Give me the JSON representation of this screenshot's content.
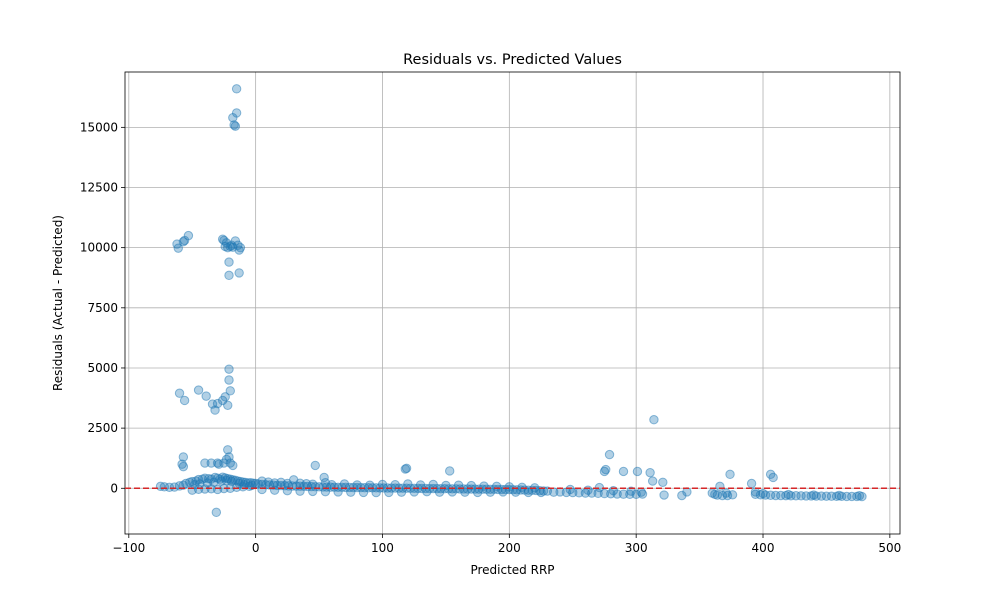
{
  "chart_data": {
    "type": "scatter",
    "title": "Residuals vs. Predicted Values",
    "xlabel": "Predicted RRP",
    "ylabel": "Residuals (Actual - Predicted)",
    "xlim": [
      -103,
      508
    ],
    "ylim": [
      -1900,
      17300
    ],
    "xticks": [
      -100,
      0,
      100,
      200,
      300,
      400,
      500
    ],
    "xtick_labels": [
      "−100",
      "0",
      "100",
      "200",
      "300",
      "400",
      "500"
    ],
    "yticks": [
      0,
      2500,
      5000,
      7500,
      10000,
      12500,
      15000
    ],
    "ytick_labels": [
      "0",
      "2500",
      "5000",
      "7500",
      "10000",
      "12500",
      "15000"
    ],
    "grid": true,
    "point_color": "#1f77b4",
    "point_alpha": 0.35,
    "reference_line": {
      "y": 0,
      "color": "#d62728",
      "style": "dashed"
    },
    "points": [
      [
        -15,
        16600
      ],
      [
        -18,
        15400
      ],
      [
        -17,
        15100
      ],
      [
        -15,
        15600
      ],
      [
        -16,
        15050
      ],
      [
        -62,
        10150
      ],
      [
        -61,
        9980
      ],
      [
        -57,
        10250
      ],
      [
        -56,
        10300
      ],
      [
        -53,
        10500
      ],
      [
        -25,
        10300
      ],
      [
        -24,
        10050
      ],
      [
        -23,
        10200
      ],
      [
        -22,
        10000
      ],
      [
        -20,
        10050
      ],
      [
        -18,
        10020
      ],
      [
        -16,
        10280
      ],
      [
        -14,
        10100
      ],
      [
        -12,
        10000
      ],
      [
        -13,
        9900
      ],
      [
        -21,
        9400
      ],
      [
        -21,
        8850
      ],
      [
        -13,
        8950
      ],
      [
        -26,
        10350
      ],
      [
        -19,
        10100
      ],
      [
        -60,
        3950
      ],
      [
        -56,
        3650
      ],
      [
        -45,
        4080
      ],
      [
        -39,
        3830
      ],
      [
        -34,
        3500
      ],
      [
        -32,
        3250
      ],
      [
        -30,
        3520
      ],
      [
        -26,
        3650
      ],
      [
        -24,
        3800
      ],
      [
        -22,
        3450
      ],
      [
        -21,
        4950
      ],
      [
        -21,
        4500
      ],
      [
        -20,
        4050
      ],
      [
        -22,
        1600
      ],
      [
        -21,
        1300
      ],
      [
        -20,
        1050
      ],
      [
        -25,
        1050
      ],
      [
        -35,
        1050
      ],
      [
        -30,
        1050
      ],
      [
        -40,
        1050
      ],
      [
        -57,
        1300
      ],
      [
        -58,
        1000
      ],
      [
        -57,
        900
      ],
      [
        -18,
        950
      ],
      [
        -23,
        1200
      ],
      [
        -29,
        1000
      ],
      [
        -31,
        -1000
      ],
      [
        47,
        950
      ],
      [
        119,
        830
      ],
      [
        118,
        800
      ],
      [
        153,
        720
      ],
      [
        54,
        450
      ],
      [
        279,
        1400
      ],
      [
        275,
        700
      ],
      [
        276,
        780
      ],
      [
        290,
        700
      ],
      [
        301,
        700
      ],
      [
        311,
        650
      ],
      [
        313,
        300
      ],
      [
        321,
        250
      ],
      [
        322,
        -280
      ],
      [
        336,
        -300
      ],
      [
        314,
        2850
      ],
      [
        374,
        580
      ],
      [
        366,
        80
      ],
      [
        371,
        -200
      ],
      [
        406,
        580
      ],
      [
        408,
        450
      ],
      [
        391,
        200
      ],
      [
        394,
        -150
      ],
      [
        340,
        -150
      ],
      [
        -75,
        80
      ],
      [
        -72,
        60
      ],
      [
        -68,
        40
      ],
      [
        -64,
        50
      ],
      [
        -60,
        100
      ],
      [
        -57,
        130
      ],
      [
        -55,
        200
      ],
      [
        -52,
        250
      ],
      [
        -50,
        280
      ],
      [
        -47,
        300
      ],
      [
        -45,
        360
      ],
      [
        -42,
        380
      ],
      [
        -40,
        420
      ],
      [
        -37,
        400
      ],
      [
        -35,
        380
      ],
      [
        -32,
        450
      ],
      [
        -30,
        420
      ],
      [
        -28,
        380
      ],
      [
        -26,
        460
      ],
      [
        -24,
        430
      ],
      [
        -22,
        400
      ],
      [
        -20,
        380
      ],
      [
        -18,
        350
      ],
      [
        -16,
        330
      ],
      [
        -14,
        300
      ],
      [
        -12,
        280
      ],
      [
        -10,
        260
      ],
      [
        -8,
        240
      ],
      [
        -6,
        220
      ],
      [
        -4,
        230
      ],
      [
        -2,
        210
      ],
      [
        0,
        200
      ],
      [
        -50,
        -80
      ],
      [
        -45,
        -40
      ],
      [
        -40,
        -30
      ],
      [
        -35,
        -20
      ],
      [
        -30,
        -50
      ],
      [
        -25,
        -10
      ],
      [
        -20,
        0
      ],
      [
        -15,
        40
      ],
      [
        -10,
        60
      ],
      [
        -5,
        80
      ],
      [
        -48,
        150
      ],
      [
        -44,
        180
      ],
      [
        -38,
        220
      ],
      [
        -33,
        250
      ],
      [
        -27,
        300
      ],
      [
        -23,
        320
      ],
      [
        -19,
        290
      ],
      [
        -13,
        200
      ],
      [
        -9,
        150
      ],
      [
        -3,
        120
      ],
      [
        2,
        180
      ],
      [
        5,
        160
      ],
      [
        8,
        150
      ],
      [
        11,
        140
      ],
      [
        14,
        130
      ],
      [
        17,
        120
      ],
      [
        20,
        115
      ],
      [
        23,
        110
      ],
      [
        26,
        100
      ],
      [
        29,
        95
      ],
      [
        32,
        90
      ],
      [
        35,
        85
      ],
      [
        38,
        80
      ],
      [
        41,
        75
      ],
      [
        44,
        70
      ],
      [
        47,
        65
      ],
      [
        50,
        60
      ],
      [
        53,
        55
      ],
      [
        56,
        50
      ],
      [
        59,
        48
      ],
      [
        62,
        45
      ],
      [
        65,
        42
      ],
      [
        68,
        40
      ],
      [
        71,
        38
      ],
      [
        74,
        35
      ],
      [
        77,
        32
      ],
      [
        80,
        30
      ],
      [
        83,
        28
      ],
      [
        86,
        25
      ],
      [
        89,
        22
      ],
      [
        92,
        20
      ],
      [
        95,
        18
      ],
      [
        98,
        16
      ],
      [
        101,
        14
      ],
      [
        104,
        12
      ],
      [
        107,
        10
      ],
      [
        110,
        8
      ],
      [
        113,
        6
      ],
      [
        116,
        4
      ],
      [
        119,
        2
      ],
      [
        122,
        0
      ],
      [
        125,
        -2
      ],
      [
        128,
        -4
      ],
      [
        131,
        -6
      ],
      [
        134,
        -8
      ],
      [
        137,
        -10
      ],
      [
        140,
        -12
      ],
      [
        143,
        -14
      ],
      [
        146,
        -16
      ],
      [
        149,
        -18
      ],
      [
        152,
        -20
      ],
      [
        155,
        -22
      ],
      [
        158,
        -24
      ],
      [
        161,
        -26
      ],
      [
        164,
        -28
      ],
      [
        167,
        -30
      ],
      [
        170,
        -32
      ],
      [
        173,
        -34
      ],
      [
        176,
        -36
      ],
      [
        179,
        -38
      ],
      [
        182,
        -40
      ],
      [
        185,
        -42
      ],
      [
        188,
        -44
      ],
      [
        191,
        -46
      ],
      [
        194,
        -48
      ],
      [
        197,
        -50
      ],
      [
        200,
        -55
      ],
      [
        203,
        -60
      ],
      [
        206,
        -65
      ],
      [
        209,
        -70
      ],
      [
        212,
        -75
      ],
      [
        215,
        -80
      ],
      [
        218,
        -85
      ],
      [
        221,
        -90
      ],
      [
        224,
        -100
      ],
      [
        227,
        -110
      ],
      [
        230,
        -115
      ],
      [
        5,
        300
      ],
      [
        10,
        260
      ],
      [
        15,
        220
      ],
      [
        20,
        250
      ],
      [
        25,
        200
      ],
      [
        30,
        350
      ],
      [
        35,
        210
      ],
      [
        40,
        190
      ],
      [
        45,
        170
      ],
      [
        55,
        230
      ],
      [
        60,
        150
      ],
      [
        70,
        180
      ],
      [
        80,
        140
      ],
      [
        90,
        130
      ],
      [
        100,
        160
      ],
      [
        110,
        150
      ],
      [
        120,
        180
      ],
      [
        130,
        140
      ],
      [
        140,
        160
      ],
      [
        150,
        120
      ],
      [
        160,
        130
      ],
      [
        170,
        110
      ],
      [
        180,
        90
      ],
      [
        190,
        80
      ],
      [
        200,
        60
      ],
      [
        210,
        40
      ],
      [
        220,
        20
      ],
      [
        5,
        -50
      ],
      [
        15,
        -80
      ],
      [
        25,
        -100
      ],
      [
        35,
        -120
      ],
      [
        45,
        -130
      ],
      [
        55,
        -140
      ],
      [
        65,
        -150
      ],
      [
        75,
        -160
      ],
      [
        85,
        -170
      ],
      [
        95,
        -180
      ],
      [
        105,
        -170
      ],
      [
        115,
        -160
      ],
      [
        125,
        -150
      ],
      [
        135,
        -140
      ],
      [
        145,
        -160
      ],
      [
        155,
        -150
      ],
      [
        165,
        -160
      ],
      [
        175,
        -170
      ],
      [
        185,
        -160
      ],
      [
        195,
        -150
      ],
      [
        205,
        -160
      ],
      [
        215,
        -170
      ],
      [
        225,
        -170
      ],
      [
        235,
        -160
      ],
      [
        240,
        -150
      ],
      [
        245,
        -170
      ],
      [
        250,
        -180
      ],
      [
        255,
        -190
      ],
      [
        260,
        -200
      ],
      [
        265,
        -200
      ],
      [
        270,
        -210
      ],
      [
        275,
        -220
      ],
      [
        280,
        -230
      ],
      [
        285,
        -240
      ],
      [
        290,
        -245
      ],
      [
        295,
        -250
      ],
      [
        300,
        -250
      ],
      [
        305,
        -240
      ],
      [
        248,
        -50
      ],
      [
        262,
        -80
      ],
      [
        271,
        30
      ],
      [
        282,
        -100
      ],
      [
        296,
        -120
      ],
      [
        304,
        -160
      ],
      [
        360,
        -200
      ],
      [
        362,
        -250
      ],
      [
        364,
        -280
      ],
      [
        368,
        -300
      ],
      [
        372,
        -300
      ],
      [
        376,
        -270
      ],
      [
        394,
        -250
      ],
      [
        398,
        -270
      ],
      [
        402,
        -280
      ],
      [
        406,
        -290
      ],
      [
        410,
        -300
      ],
      [
        414,
        -300
      ],
      [
        418,
        -305
      ],
      [
        422,
        -310
      ],
      [
        426,
        -310
      ],
      [
        430,
        -315
      ],
      [
        434,
        -320
      ],
      [
        438,
        -320
      ],
      [
        442,
        -325
      ],
      [
        446,
        -325
      ],
      [
        450,
        -330
      ],
      [
        454,
        -330
      ],
      [
        458,
        -335
      ],
      [
        462,
        -335
      ],
      [
        466,
        -340
      ],
      [
        470,
        -340
      ],
      [
        474,
        -340
      ],
      [
        478,
        -345
      ],
      [
        400,
        -220
      ],
      [
        420,
        -260
      ],
      [
        440,
        -280
      ],
      [
        460,
        -300
      ],
      [
        476,
        -310
      ]
    ]
  }
}
